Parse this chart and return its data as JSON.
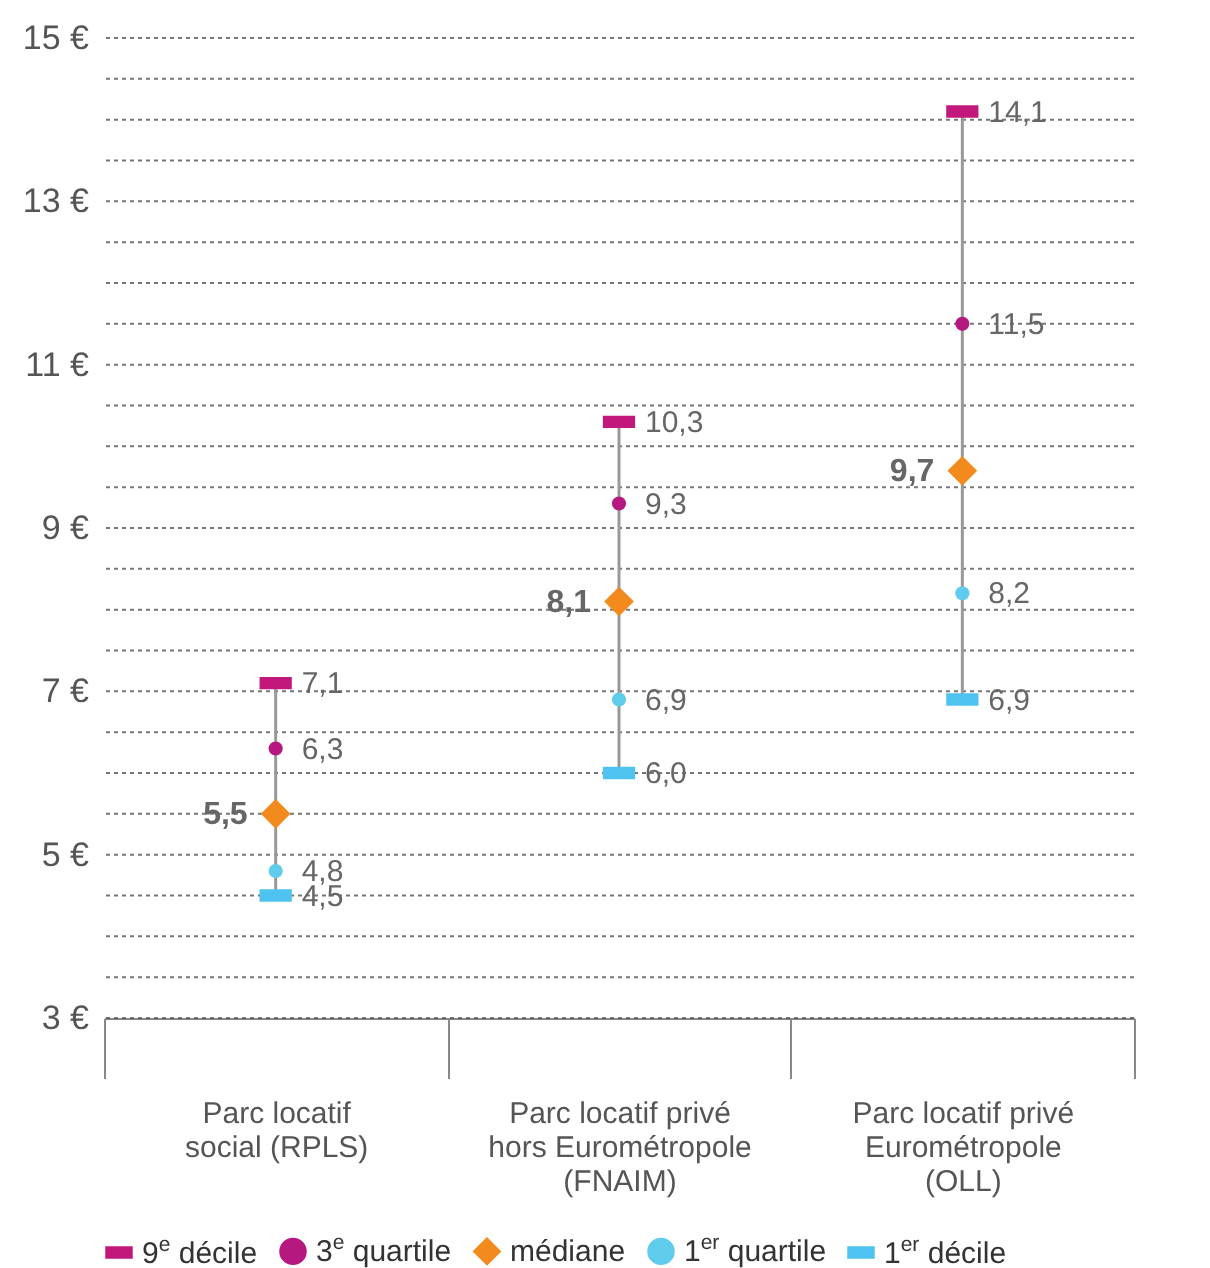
{
  "chart_data": {
    "type": "scatter",
    "categories": [
      "Parc locatif\nsocial (RPLS)",
      "Parc locatif privé\nhors Eurométropole\n(FNAIM)",
      "Parc locatif privé\nEurométropole\n(OLL)"
    ],
    "series": [
      {
        "name": "9$^{e}$ décile",
        "color": "#c2187c",
        "values": [
          7.1,
          10.3,
          14.1
        ],
        "value_labels": [
          "7,1",
          "10,3",
          "14,1"
        ]
      },
      {
        "name": "3$^{e}$ quartile",
        "color": "#b5187f",
        "marker": "circle",
        "values": [
          6.3,
          9.3,
          11.5
        ],
        "value_labels": [
          "6,3",
          "9,3",
          "11,5"
        ]
      },
      {
        "name": "médiane",
        "color": "#f28a1e",
        "marker": "diamond",
        "values": [
          5.5,
          8.1,
          9.7
        ],
        "value_labels": [
          "5,5",
          "8,1",
          "9,7"
        ]
      },
      {
        "name": "1$^{er}$ quartile",
        "color": "#5fcbed",
        "marker": "circle",
        "values": [
          4.8,
          6.9,
          8.2
        ],
        "value_labels": [
          "4,8",
          "6,9",
          "8,2"
        ]
      },
      {
        "name": "1$^{er}$ décile",
        "color": "#4fc3f0",
        "values": [
          4.5,
          6.0,
          6.9
        ],
        "value_labels": [
          "4,5",
          "6,0",
          "6,9"
        ]
      }
    ],
    "ylim": [
      3,
      15
    ],
    "yticks": [
      {
        "value": 3,
        "label": "3 €"
      },
      {
        "value": 3.5,
        "label": null
      },
      {
        "value": 4,
        "label": null
      },
      {
        "value": 4.5,
        "label": null
      },
      {
        "value": 5,
        "label": "5 €"
      },
      {
        "value": 5.5,
        "label": null
      },
      {
        "value": 6,
        "label": null
      },
      {
        "value": 6.5,
        "label": null
      },
      {
        "value": 7,
        "label": "7 €"
      },
      {
        "value": 7.5,
        "label": null
      },
      {
        "value": 8,
        "label": null
      },
      {
        "value": 8.5,
        "label": null
      },
      {
        "value": 9,
        "label": "9 €"
      },
      {
        "value": 9.5,
        "label": null
      },
      {
        "value": 10,
        "label": null
      },
      {
        "value": 10.5,
        "label": null
      },
      {
        "value": 11,
        "label": "11 €"
      },
      {
        "value": 11.5,
        "label": null
      },
      {
        "value": 12,
        "label": null
      },
      {
        "value": 12.5,
        "label": null
      },
      {
        "value": 13,
        "label": "13 €"
      },
      {
        "value": 13.5,
        "label": null
      },
      {
        "value": 14,
        "label": null
      },
      {
        "value": 14.5,
        "label": null
      },
      {
        "value": 15,
        "label": "15 €"
      }
    ],
    "grid": "y",
    "legend": "bottom"
  }
}
